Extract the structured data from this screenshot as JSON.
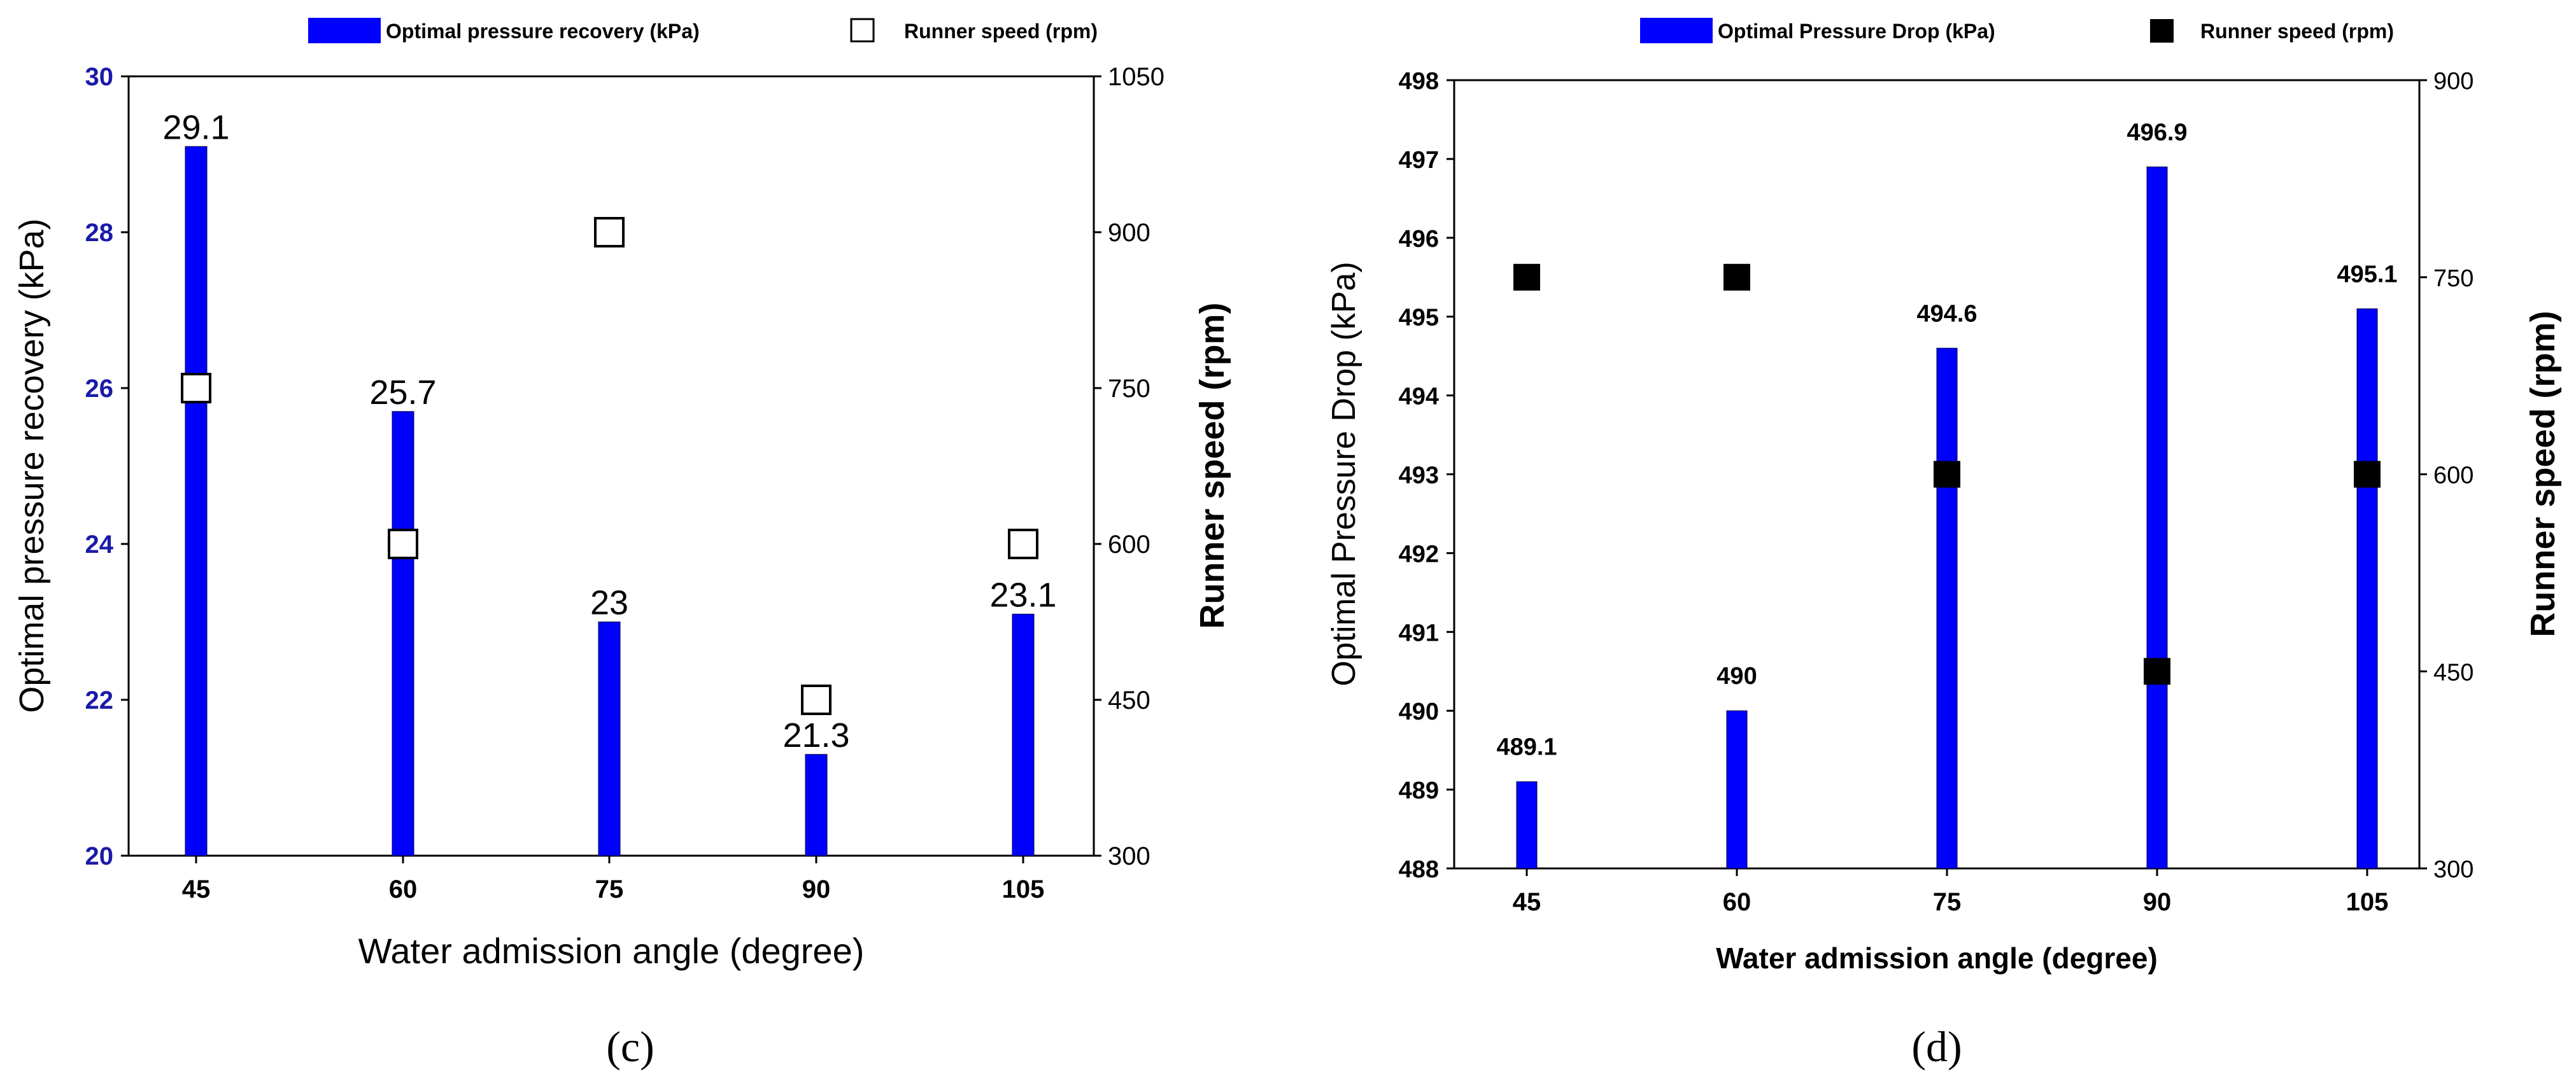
{
  "chart_data": [
    {
      "type": "bar",
      "panel_label": "(c)",
      "legend": [
        "Optimal pressure recovery (kPa)",
        "Runner speed (rpm)"
      ],
      "categories": [
        "45",
        "60",
        "75",
        "90",
        "105"
      ],
      "series": [
        {
          "name": "Optimal pressure recovery (kPa)",
          "kind": "bar",
          "axis": "left",
          "values": [
            29.1,
            25.7,
            23,
            21.3,
            23.1
          ],
          "labels": [
            "29.1",
            "25.7",
            "23",
            "21.3",
            "23.1"
          ]
        },
        {
          "name": "Runner speed (rpm)",
          "kind": "scatter",
          "marker": "open-square",
          "axis": "right",
          "values": [
            750,
            600,
            900,
            450,
            600
          ]
        }
      ],
      "xlabel": "Water admission angle (degree)",
      "ylabel": "Optimal pressure recovery (kPa)",
      "y2label": "Runner speed (rpm)",
      "ylim": [
        20,
        30
      ],
      "yticks": [
        "20",
        "22",
        "24",
        "26",
        "28",
        "30"
      ],
      "y2lim": [
        300,
        1050
      ],
      "y2ticks": [
        "300",
        "450",
        "600",
        "750",
        "900",
        "1050"
      ],
      "colors": {
        "bar": "#0000ff",
        "left_tick": "#1a1aa8",
        "marker_fill": "#ffffff"
      }
    },
    {
      "type": "bar",
      "panel_label": "(d)",
      "legend": [
        "Optimal  Pressure Drop (kPa)",
        "Runner speed (rpm)"
      ],
      "categories": [
        "45",
        "60",
        "75",
        "90",
        "105"
      ],
      "series": [
        {
          "name": "Optimal  Pressure Drop (kPa)",
          "kind": "bar",
          "axis": "left",
          "values": [
            489.1,
            490,
            494.6,
            496.9,
            495.1
          ],
          "labels": [
            "489.1",
            "490",
            "494.6",
            "496.9",
            "495.1"
          ]
        },
        {
          "name": "Runner speed (rpm)",
          "kind": "scatter",
          "marker": "filled-square",
          "axis": "right",
          "values": [
            750,
            750,
            600,
            450,
            600
          ]
        }
      ],
      "xlabel": "Water admission angle (degree)",
      "ylabel": "Optimal  Pressure Drop (kPa)",
      "y2label": "Runner speed (rpm)",
      "ylim": [
        488,
        498
      ],
      "yticks": [
        "488",
        "489",
        "490",
        "491",
        "492",
        "493",
        "494",
        "495",
        "496",
        "497",
        "498"
      ],
      "y2lim": [
        300,
        900
      ],
      "y2ticks": [
        "300",
        "450",
        "600",
        "750",
        "900"
      ],
      "colors": {
        "bar": "#0000ff",
        "left_tick": "#000000",
        "marker_fill": "#000000"
      }
    }
  ]
}
